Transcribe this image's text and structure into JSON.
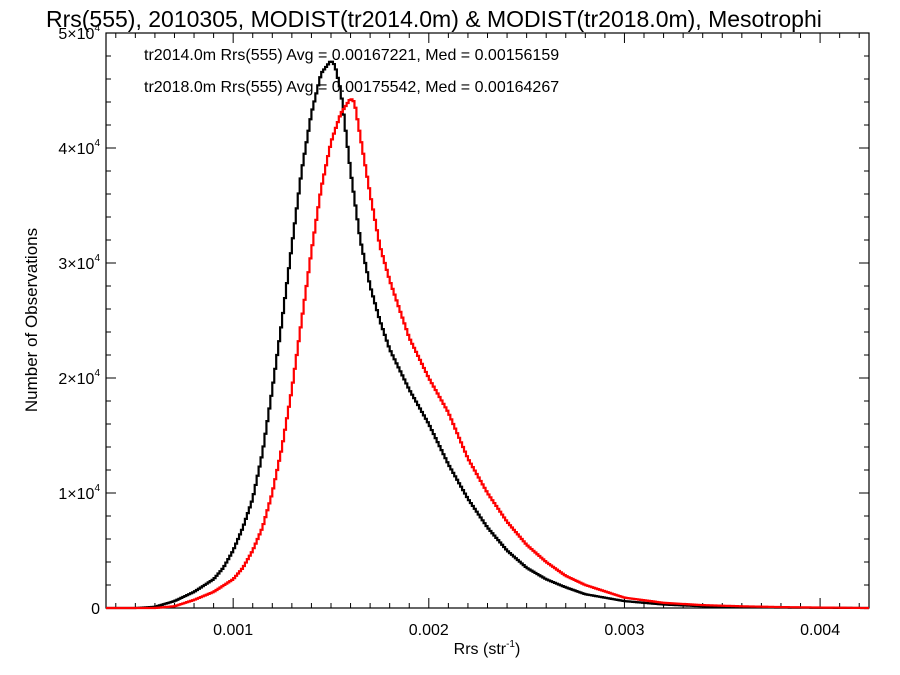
{
  "chart_data": {
    "type": "line",
    "title": "Rrs(555), 2010305, MODIST(tr2014.0m) & MODIST(tr2018.0m), Mesotrophi",
    "xlabel_main": "Rrs (str",
    "xlabel_sup": "-1",
    "xlabel_end": ")",
    "ylabel": "Number of Observations",
    "xlim": [
      0.00035,
      0.00425
    ],
    "ylim": [
      0,
      50000
    ],
    "xticks": [
      {
        "value": 0.001,
        "label": "0.001"
      },
      {
        "value": 0.002,
        "label": "0.002"
      },
      {
        "value": 0.003,
        "label": "0.003"
      },
      {
        "value": 0.004,
        "label": "0.004"
      }
    ],
    "yticks": [
      {
        "value": 0,
        "base": "0",
        "exp": ""
      },
      {
        "value": 10000,
        "base": "1×10",
        "exp": "4"
      },
      {
        "value": 20000,
        "base": "2×10",
        "exp": "4"
      },
      {
        "value": 30000,
        "base": "3×10",
        "exp": "4"
      },
      {
        "value": 40000,
        "base": "4×10",
        "exp": "4"
      },
      {
        "value": 50000,
        "base": "5×10",
        "exp": "4"
      }
    ],
    "annotations": [
      {
        "text": "tr2014.0m Rrs(555) Avg = 0.00167221, Med = 0.00156159",
        "color": "#000000"
      },
      {
        "text": "tr2018.0m Rrs(555) Avg = 0.00175542, Med = 0.00164267",
        "color": "#ff0000"
      }
    ],
    "series": [
      {
        "color": "#000000",
        "x": [
          0.00035,
          0.0005,
          0.0006,
          0.0007,
          0.0008,
          0.0009,
          0.00095,
          0.001,
          0.00105,
          0.0011,
          0.00115,
          0.0012,
          0.00125,
          0.0013,
          0.00135,
          0.0014,
          0.00145,
          0.0015,
          0.00152,
          0.00155,
          0.0016,
          0.00165,
          0.0017,
          0.00175,
          0.0018,
          0.0019,
          0.002,
          0.0021,
          0.0022,
          0.0023,
          0.0024,
          0.0025,
          0.0026,
          0.0027,
          0.0028,
          0.003,
          0.0032,
          0.0034,
          0.0036,
          0.0038,
          0.004,
          0.00425
        ],
        "y": [
          0,
          0,
          100,
          600,
          1400,
          2500,
          3500,
          5000,
          7000,
          9500,
          13500,
          19000,
          25000,
          31500,
          38000,
          43000,
          46500,
          47600,
          47200,
          45000,
          38000,
          32000,
          28000,
          25000,
          22500,
          19000,
          16000,
          12500,
          9500,
          7000,
          5000,
          3500,
          2500,
          1800,
          1200,
          600,
          300,
          150,
          80,
          40,
          20,
          0
        ]
      },
      {
        "color": "#ff0000",
        "x": [
          0.00035,
          0.0006,
          0.0007,
          0.0008,
          0.0009,
          0.001,
          0.00105,
          0.0011,
          0.00115,
          0.0012,
          0.00125,
          0.0013,
          0.00135,
          0.0014,
          0.00145,
          0.0015,
          0.00155,
          0.0016,
          0.00162,
          0.00165,
          0.0017,
          0.00175,
          0.0018,
          0.0019,
          0.002,
          0.0021,
          0.0022,
          0.0023,
          0.0024,
          0.0025,
          0.0026,
          0.0027,
          0.0028,
          0.003,
          0.0032,
          0.0034,
          0.0036,
          0.0038,
          0.004,
          0.00425
        ],
        "y": [
          0,
          0,
          150,
          700,
          1400,
          2500,
          3500,
          5000,
          7000,
          10000,
          14000,
          19000,
          25000,
          31000,
          36500,
          40500,
          43000,
          44300,
          44000,
          41000,
          36000,
          31500,
          28500,
          23500,
          20000,
          17000,
          13000,
          10000,
          7500,
          5500,
          4000,
          2800,
          2000,
          900,
          450,
          250,
          150,
          80,
          40,
          0
        ]
      }
    ]
  }
}
